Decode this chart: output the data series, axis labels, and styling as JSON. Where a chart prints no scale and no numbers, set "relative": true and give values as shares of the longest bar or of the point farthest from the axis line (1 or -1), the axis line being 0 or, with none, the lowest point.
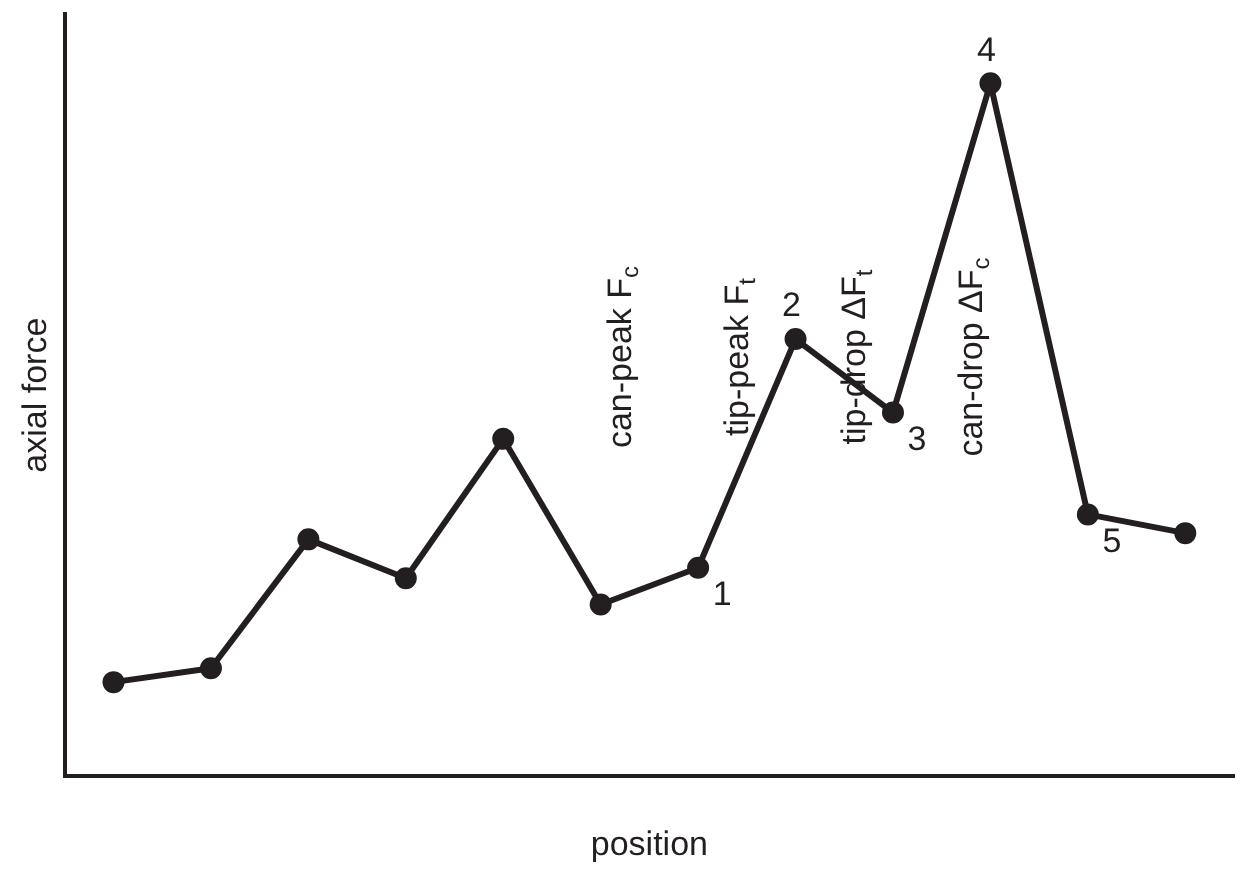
{
  "chart_data": {
    "type": "line",
    "relative": true,
    "xlabel": "position",
    "ylabel": "axial force",
    "categories": [
      null,
      null,
      null,
      null,
      null,
      null,
      null,
      null,
      null,
      null,
      null,
      null
    ],
    "series": [
      {
        "color": "#231f20",
        "values": [
          0.136,
          0.156,
          0.342,
          0.286,
          0.487,
          0.248,
          0.301,
          0.631,
          0.525,
          1,
          0.378,
          0.351
        ]
      }
    ],
    "marker": "circle",
    "line_style": "solid",
    "grid": false,
    "legend": false,
    "annotations": [
      "1",
      "2",
      "3",
      "4",
      "5",
      "can-peak F$_{c}$",
      "tip-peak F$_{t}$",
      "tip-drop ΔF$_{t}$",
      "can-drop ΔF$_{c}$"
    ]
  }
}
